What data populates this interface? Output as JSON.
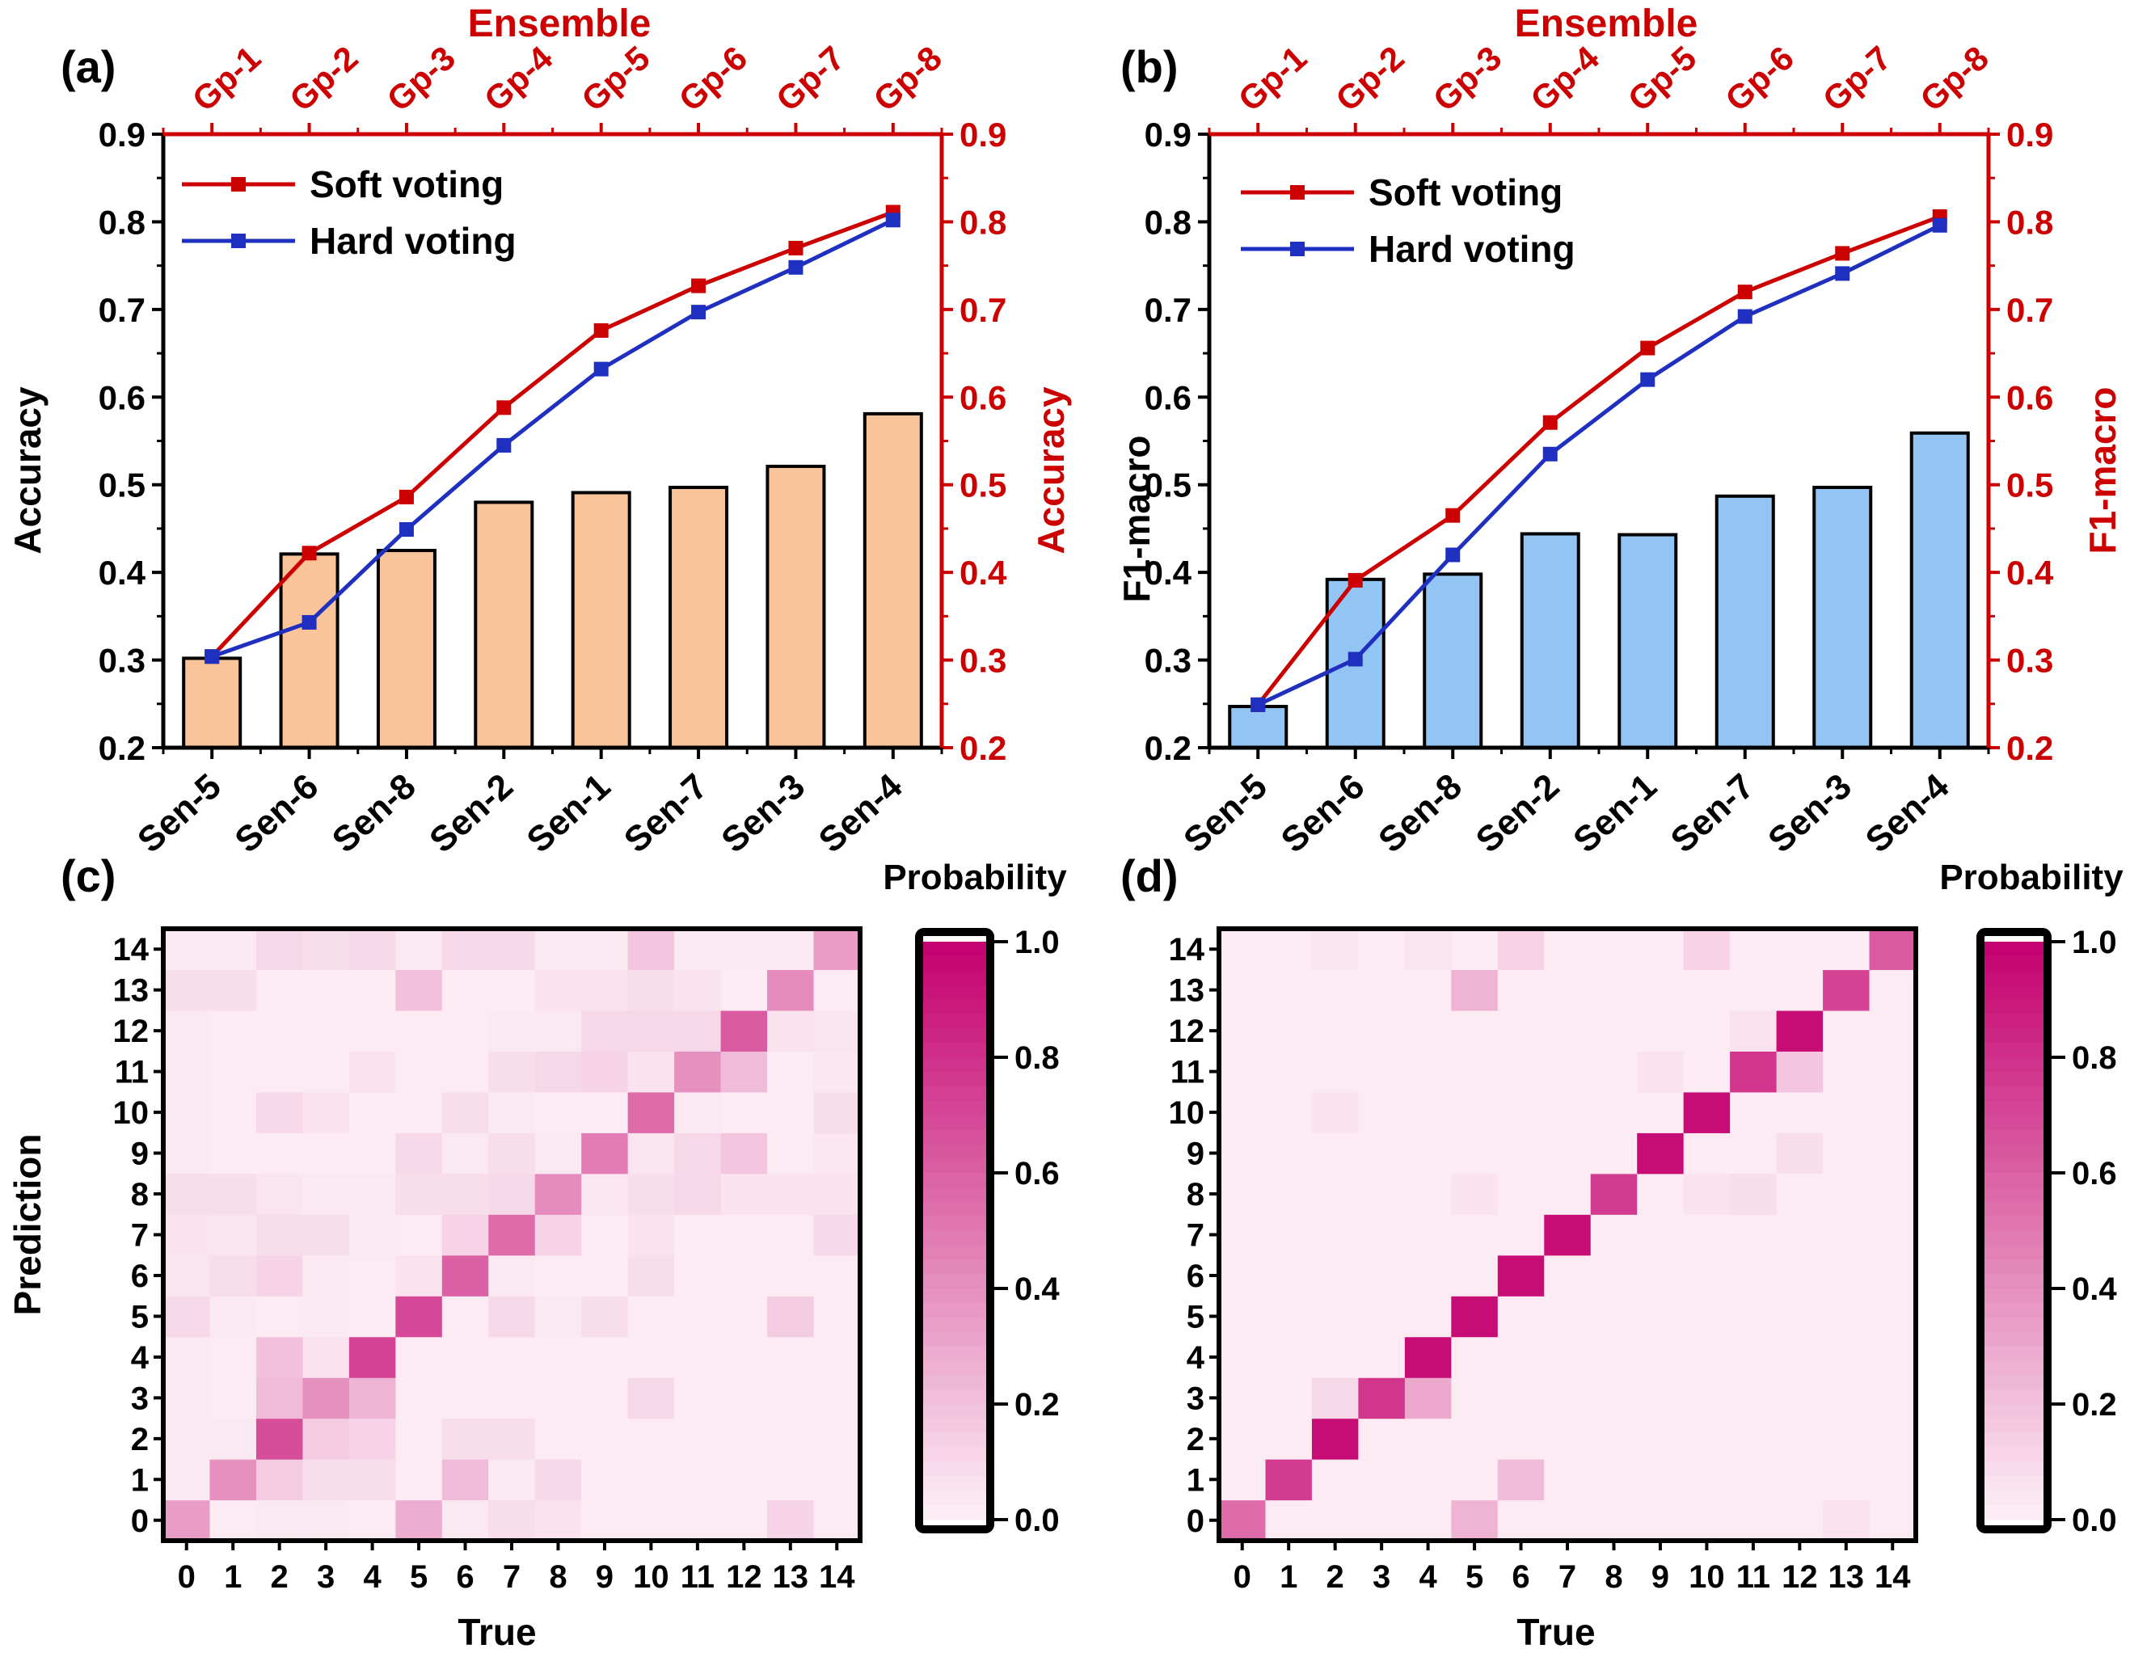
{
  "colors": {
    "soft": "#cc0000",
    "hard": "#1f2fbf",
    "axis_right": "#cc0000",
    "bar_a": "#f9c49a",
    "bar_b": "#92c5f4",
    "heat_low": "#fdf0f6",
    "heat_high": "#c4006e"
  },
  "chart_data": [
    {
      "id": "a",
      "type": "bar+line",
      "panel_label": "(a)",
      "top_axis_title": "Ensemble",
      "ylabel_left": "Accuracy",
      "ylabel_right": "Accuracy",
      "ylim": [
        0.2,
        0.9
      ],
      "yticks": [
        "0.2",
        "0.3",
        "0.4",
        "0.5",
        "0.6",
        "0.7",
        "0.8",
        "0.9"
      ],
      "categories": [
        "Sen-5",
        "Sen-6",
        "Sen-8",
        "Sen-2",
        "Sen-1",
        "Sen-7",
        "Sen-3",
        "Sen-4"
      ],
      "top_categories": [
        "Gp-1",
        "Gp-2",
        "Gp-3",
        "Gp-4",
        "Gp-5",
        "Gp-6",
        "Gp-7",
        "Gp-8"
      ],
      "bars": [
        0.302,
        0.421,
        0.425,
        0.48,
        0.491,
        0.497,
        0.521,
        0.581
      ],
      "series": [
        {
          "name": "Soft voting",
          "values": [
            0.304,
            0.422,
            0.486,
            0.588,
            0.676,
            0.727,
            0.77,
            0.811
          ]
        },
        {
          "name": "Hard voting",
          "values": [
            0.304,
            0.343,
            0.449,
            0.545,
            0.632,
            0.697,
            0.748,
            0.802
          ]
        }
      ]
    },
    {
      "id": "b",
      "type": "bar+line",
      "panel_label": "(b)",
      "top_axis_title": "Ensemble",
      "ylabel_left": "F1-macro",
      "ylabel_right": "F1-macro",
      "ylim": [
        0.2,
        0.9
      ],
      "yticks": [
        "0.2",
        "0.3",
        "0.4",
        "0.5",
        "0.6",
        "0.7",
        "0.8",
        "0.9"
      ],
      "categories": [
        "Sen-5",
        "Sen-6",
        "Sen-8",
        "Sen-2",
        "Sen-1",
        "Sen-7",
        "Sen-3",
        "Sen-4"
      ],
      "top_categories": [
        "Gp-1",
        "Gp-2",
        "Gp-3",
        "Gp-4",
        "Gp-5",
        "Gp-6",
        "Gp-7",
        "Gp-8"
      ],
      "bars": [
        0.247,
        0.392,
        0.398,
        0.444,
        0.443,
        0.487,
        0.497,
        0.559
      ],
      "series": [
        {
          "name": "Soft voting",
          "values": [
            0.249,
            0.391,
            0.465,
            0.571,
            0.656,
            0.72,
            0.764,
            0.806
          ]
        },
        {
          "name": "Hard voting",
          "values": [
            0.249,
            0.301,
            0.42,
            0.535,
            0.62,
            0.692,
            0.741,
            0.796
          ]
        }
      ]
    },
    {
      "id": "c",
      "type": "heatmap",
      "panel_label": "(c)",
      "xlabel": "True",
      "ylabel": "Prediction",
      "colorbar_title": "Probability",
      "colorbar_ticks": [
        "0.0",
        "0.2",
        "0.4",
        "0.6",
        "0.8",
        "1.0"
      ],
      "x_ticks": [
        "0",
        "1",
        "2",
        "3",
        "4",
        "5",
        "6",
        "7",
        "8",
        "9",
        "10",
        "11",
        "12",
        "13",
        "14"
      ],
      "y_ticks": [
        "0",
        "1",
        "2",
        "3",
        "4",
        "5",
        "6",
        "7",
        "8",
        "9",
        "10",
        "11",
        "12",
        "13",
        "14"
      ],
      "matrix_note": "rows = Prediction 0..14, columns = True 0..14",
      "matrix": [
        [
          0.35,
          0.02,
          0.03,
          0.03,
          0.02,
          0.28,
          0.03,
          0.08,
          0.06,
          0.02,
          0.02,
          0.02,
          0.02,
          0.12,
          0.02
        ],
        [
          0.03,
          0.4,
          0.15,
          0.08,
          0.08,
          0.02,
          0.22,
          0.03,
          0.1,
          0.02,
          0.02,
          0.02,
          0.02,
          0.02,
          0.02
        ],
        [
          0.03,
          0.03,
          0.68,
          0.15,
          0.12,
          0.02,
          0.08,
          0.08,
          0.02,
          0.02,
          0.02,
          0.02,
          0.02,
          0.02,
          0.02
        ],
        [
          0.03,
          0.02,
          0.22,
          0.4,
          0.25,
          0.02,
          0.02,
          0.02,
          0.02,
          0.02,
          0.1,
          0.02,
          0.02,
          0.02,
          0.02
        ],
        [
          0.03,
          0.02,
          0.2,
          0.06,
          0.72,
          0.02,
          0.02,
          0.02,
          0.02,
          0.02,
          0.02,
          0.02,
          0.02,
          0.02,
          0.02
        ],
        [
          0.1,
          0.03,
          0.02,
          0.03,
          0.02,
          0.7,
          0.02,
          0.1,
          0.03,
          0.08,
          0.02,
          0.02,
          0.02,
          0.15,
          0.02
        ],
        [
          0.05,
          0.08,
          0.12,
          0.03,
          0.02,
          0.06,
          0.6,
          0.03,
          0.02,
          0.02,
          0.08,
          0.02,
          0.02,
          0.02,
          0.02
        ],
        [
          0.06,
          0.05,
          0.08,
          0.08,
          0.03,
          0.02,
          0.12,
          0.55,
          0.12,
          0.02,
          0.06,
          0.02,
          0.02,
          0.02,
          0.1
        ],
        [
          0.08,
          0.08,
          0.05,
          0.03,
          0.03,
          0.08,
          0.08,
          0.1,
          0.42,
          0.04,
          0.08,
          0.1,
          0.06,
          0.06,
          0.06
        ],
        [
          0.03,
          0.02,
          0.02,
          0.02,
          0.02,
          0.1,
          0.03,
          0.08,
          0.03,
          0.48,
          0.05,
          0.1,
          0.18,
          0.02,
          0.04
        ],
        [
          0.03,
          0.02,
          0.1,
          0.06,
          0.02,
          0.02,
          0.08,
          0.03,
          0.02,
          0.02,
          0.55,
          0.03,
          0.02,
          0.02,
          0.08
        ],
        [
          0.03,
          0.02,
          0.02,
          0.02,
          0.06,
          0.02,
          0.02,
          0.08,
          0.1,
          0.12,
          0.06,
          0.4,
          0.22,
          0.02,
          0.04
        ],
        [
          0.03,
          0.02,
          0.02,
          0.02,
          0.02,
          0.02,
          0.02,
          0.03,
          0.03,
          0.1,
          0.1,
          0.1,
          0.62,
          0.06,
          0.05
        ],
        [
          0.08,
          0.08,
          0.02,
          0.02,
          0.02,
          0.2,
          0.02,
          0.02,
          0.06,
          0.06,
          0.08,
          0.06,
          0.02,
          0.42,
          0.02
        ],
        [
          0.03,
          0.03,
          0.1,
          0.08,
          0.1,
          0.03,
          0.1,
          0.1,
          0.03,
          0.03,
          0.18,
          0.03,
          0.03,
          0.03,
          0.35
        ]
      ]
    },
    {
      "id": "d",
      "type": "heatmap",
      "panel_label": "(d)",
      "xlabel": "True",
      "ylabel": "",
      "colorbar_title": "Probability",
      "colorbar_ticks": [
        "0.0",
        "0.2",
        "0.4",
        "0.6",
        "0.8",
        "1.0"
      ],
      "x_ticks": [
        "0",
        "1",
        "2",
        "3",
        "4",
        "5",
        "6",
        "7",
        "8",
        "9",
        "10",
        "11",
        "12",
        "13",
        "14"
      ],
      "y_ticks": [
        "0",
        "1",
        "2",
        "3",
        "4",
        "5",
        "6",
        "7",
        "8",
        "9",
        "10",
        "11",
        "12",
        "13",
        "14"
      ],
      "matrix_note": "rows = Prediction 0..14, columns = True 0..14",
      "matrix": [
        [
          0.55,
          0.02,
          0.02,
          0.02,
          0.02,
          0.25,
          0.02,
          0.02,
          0.02,
          0.02,
          0.02,
          0.02,
          0.02,
          0.06,
          0.02
        ],
        [
          0.02,
          0.75,
          0.02,
          0.02,
          0.02,
          0.02,
          0.22,
          0.02,
          0.02,
          0.02,
          0.02,
          0.02,
          0.02,
          0.02,
          0.02
        ],
        [
          0.02,
          0.02,
          0.95,
          0.02,
          0.02,
          0.02,
          0.02,
          0.02,
          0.02,
          0.02,
          0.02,
          0.02,
          0.02,
          0.02,
          0.02
        ],
        [
          0.02,
          0.02,
          0.1,
          0.78,
          0.3,
          0.02,
          0.02,
          0.02,
          0.02,
          0.02,
          0.02,
          0.02,
          0.02,
          0.02,
          0.02
        ],
        [
          0.02,
          0.02,
          0.02,
          0.02,
          0.95,
          0.02,
          0.02,
          0.02,
          0.02,
          0.02,
          0.02,
          0.02,
          0.02,
          0.02,
          0.02
        ],
        [
          0.02,
          0.02,
          0.02,
          0.02,
          0.02,
          0.95,
          0.02,
          0.02,
          0.02,
          0.02,
          0.02,
          0.02,
          0.02,
          0.02,
          0.02
        ],
        [
          0.02,
          0.02,
          0.02,
          0.02,
          0.02,
          0.02,
          0.95,
          0.02,
          0.02,
          0.02,
          0.02,
          0.02,
          0.02,
          0.02,
          0.02
        ],
        [
          0.02,
          0.02,
          0.02,
          0.02,
          0.02,
          0.02,
          0.02,
          0.95,
          0.02,
          0.02,
          0.02,
          0.02,
          0.02,
          0.02,
          0.02
        ],
        [
          0.02,
          0.02,
          0.02,
          0.02,
          0.02,
          0.06,
          0.02,
          0.02,
          0.75,
          0.02,
          0.06,
          0.08,
          0.02,
          0.02,
          0.02
        ],
        [
          0.02,
          0.02,
          0.02,
          0.02,
          0.02,
          0.02,
          0.02,
          0.02,
          0.02,
          0.95,
          0.02,
          0.02,
          0.08,
          0.02,
          0.02
        ],
        [
          0.02,
          0.02,
          0.06,
          0.02,
          0.02,
          0.02,
          0.02,
          0.02,
          0.02,
          0.02,
          0.95,
          0.02,
          0.02,
          0.02,
          0.02
        ],
        [
          0.02,
          0.02,
          0.02,
          0.02,
          0.02,
          0.02,
          0.02,
          0.02,
          0.02,
          0.06,
          0.02,
          0.78,
          0.18,
          0.02,
          0.02
        ],
        [
          0.02,
          0.02,
          0.02,
          0.02,
          0.02,
          0.02,
          0.02,
          0.02,
          0.02,
          0.02,
          0.02,
          0.06,
          0.95,
          0.02,
          0.02
        ],
        [
          0.02,
          0.02,
          0.02,
          0.02,
          0.02,
          0.25,
          0.02,
          0.02,
          0.02,
          0.02,
          0.02,
          0.02,
          0.02,
          0.72,
          0.02
        ],
        [
          0.02,
          0.02,
          0.05,
          0.02,
          0.05,
          0.02,
          0.12,
          0.02,
          0.02,
          0.02,
          0.12,
          0.02,
          0.02,
          0.02,
          0.62
        ]
      ]
    }
  ]
}
